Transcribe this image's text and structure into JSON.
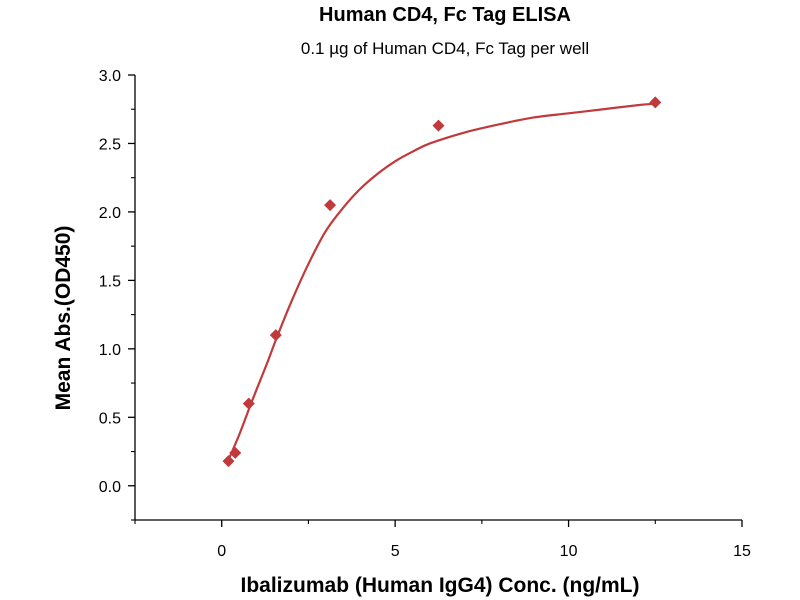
{
  "chart_data": {
    "type": "scatter",
    "title": "Human CD4, Fc Tag ELISA",
    "subtitle": "0.1 µg of Human CD4, Fc Tag per well",
    "xlabel": "Ibalizumab (Human IgG4) Conc. (ng/mL)",
    "ylabel": "Mean Abs.(OD450)",
    "xlim": [
      -2.5,
      15
    ],
    "ylim": [
      -0.25,
      3.0
    ],
    "xticks": [
      0,
      5,
      10,
      15
    ],
    "xtick_labels": [
      "0",
      "5",
      "10",
      "15"
    ],
    "yticks": [
      0.0,
      0.5,
      1.0,
      1.5,
      2.0,
      2.5,
      3.0
    ],
    "ytick_labels": [
      "0.0",
      "0.5",
      "1.0",
      "1.5",
      "2.0",
      "2.5",
      "3.0"
    ],
    "grid": false,
    "color": "#c0393b",
    "marker": "diamond",
    "series": [
      {
        "x": [
          0.195,
          0.39,
          0.78,
          1.56,
          3.125,
          6.25,
          12.5
        ],
        "y": [
          0.18,
          0.24,
          0.6,
          1.1,
          2.05,
          2.63,
          2.8
        ]
      }
    ],
    "fit_curve": [
      [
        0.195,
        0.19
      ],
      [
        0.5,
        0.37
      ],
      [
        0.8,
        0.57
      ],
      [
        1.0,
        0.7
      ],
      [
        1.3,
        0.89
      ],
      [
        1.6,
        1.09
      ],
      [
        2.0,
        1.34
      ],
      [
        2.5,
        1.62
      ],
      [
        3.0,
        1.86
      ],
      [
        3.5,
        2.03
      ],
      [
        4.0,
        2.17
      ],
      [
        4.5,
        2.28
      ],
      [
        5.0,
        2.37
      ],
      [
        5.5,
        2.44
      ],
      [
        6.0,
        2.5
      ],
      [
        7.0,
        2.58
      ],
      [
        8.0,
        2.64
      ],
      [
        9.0,
        2.69
      ],
      [
        10.0,
        2.72
      ],
      [
        11.0,
        2.75
      ],
      [
        12.0,
        2.78
      ],
      [
        12.5,
        2.79
      ]
    ]
  }
}
